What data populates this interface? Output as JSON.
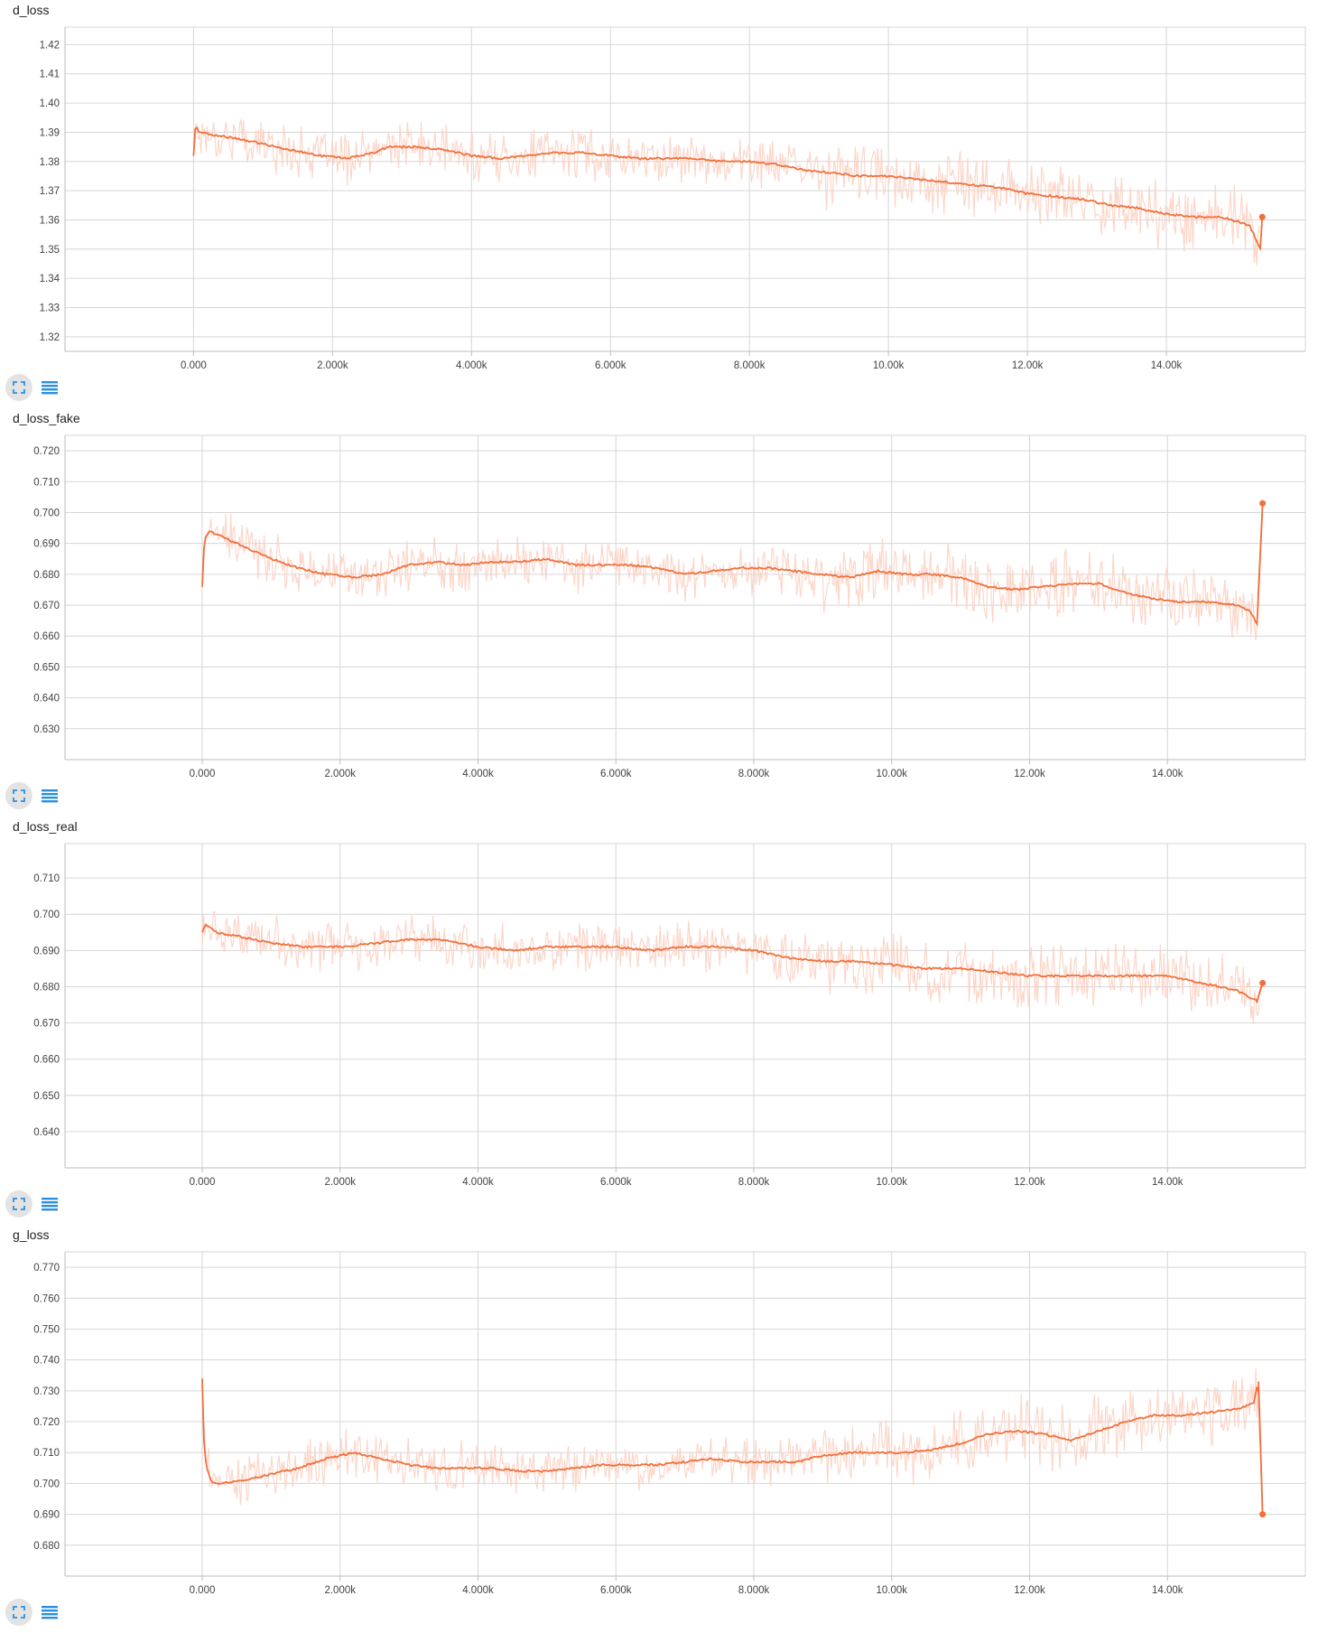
{
  "colors": {
    "smoothed": "#f26f3b",
    "raw": "#fcd2c3",
    "grid": "#d6d6d6",
    "axis": "#bdbdbd",
    "tool_icon": "#2b8fe0"
  },
  "toolbar": {
    "expand_icon": "fullscreen-icon",
    "data_icon": "list-icon"
  },
  "chart_data": [
    {
      "type": "line",
      "title": "d_loss",
      "x_ticks": [
        "0.000",
        "2.000k",
        "4.000k",
        "6.000k",
        "8.000k",
        "10.00k",
        "12.00k",
        "14.00k"
      ],
      "x_tick_values": [
        0,
        2000,
        4000,
        6000,
        8000,
        10000,
        12000,
        14000
      ],
      "y_ticks": [
        "1.32",
        "1.33",
        "1.34",
        "1.35",
        "1.36",
        "1.37",
        "1.38",
        "1.39",
        "1.40",
        "1.41",
        "1.42"
      ],
      "y_tick_values": [
        1.32,
        1.33,
        1.34,
        1.35,
        1.36,
        1.37,
        1.38,
        1.39,
        1.4,
        1.41,
        1.42
      ],
      "xlim": [
        -1850,
        16000
      ],
      "ylim": [
        1.315,
        1.426
      ],
      "grid": true,
      "series": [
        {
          "x": [
            0,
            30,
            80,
            300,
            600,
            1000,
            1400,
            1800,
            2200,
            2600,
            2800,
            3200,
            3600,
            4000,
            4400,
            4800,
            5200,
            5600,
            6000,
            6400,
            6800,
            7200,
            7600,
            8000,
            8400,
            8800,
            9200,
            9600,
            10000,
            10400,
            10800,
            11200,
            11600,
            12000,
            12400,
            12800,
            13200,
            13600,
            14000,
            14400,
            14800,
            15200,
            15350,
            15380
          ],
          "y": [
            1.382,
            1.393,
            1.39,
            1.389,
            1.388,
            1.386,
            1.384,
            1.382,
            1.381,
            1.383,
            1.385,
            1.385,
            1.384,
            1.382,
            1.381,
            1.382,
            1.383,
            1.383,
            1.382,
            1.381,
            1.381,
            1.381,
            1.38,
            1.38,
            1.379,
            1.377,
            1.376,
            1.375,
            1.375,
            1.374,
            1.373,
            1.372,
            1.371,
            1.369,
            1.368,
            1.367,
            1.365,
            1.364,
            1.362,
            1.361,
            1.361,
            1.358,
            1.35,
            1.361
          ]
        }
      ],
      "last_point": {
        "x": 15380,
        "y": 1.361
      }
    },
    {
      "type": "line",
      "title": "d_loss_fake",
      "x_ticks": [
        "0.000",
        "2.000k",
        "4.000k",
        "6.000k",
        "8.000k",
        "10.00k",
        "12.00k",
        "14.00k"
      ],
      "x_tick_values": [
        0,
        2000,
        4000,
        6000,
        8000,
        10000,
        12000,
        14000
      ],
      "y_ticks": [
        "0.630",
        "0.640",
        "0.650",
        "0.660",
        "0.670",
        "0.680",
        "0.690",
        "0.700",
        "0.710",
        "0.720"
      ],
      "y_tick_values": [
        0.63,
        0.64,
        0.65,
        0.66,
        0.67,
        0.68,
        0.69,
        0.7,
        0.71,
        0.72
      ],
      "xlim": [
        -1990,
        16000
      ],
      "ylim": [
        0.62,
        0.725
      ],
      "grid": true,
      "series": [
        {
          "x": [
            0,
            30,
            100,
            300,
            600,
            1000,
            1400,
            1800,
            2200,
            2600,
            3000,
            3400,
            3800,
            4200,
            4600,
            5000,
            5400,
            5800,
            6200,
            6600,
            7000,
            7400,
            7800,
            8200,
            8600,
            9000,
            9400,
            9800,
            10200,
            10600,
            11000,
            11400,
            11800,
            12200,
            12600,
            13000,
            13400,
            13800,
            14200,
            14600,
            15000,
            15200,
            15300,
            15380
          ],
          "y": [
            0.676,
            0.691,
            0.694,
            0.692,
            0.689,
            0.685,
            0.682,
            0.68,
            0.679,
            0.68,
            0.683,
            0.684,
            0.683,
            0.684,
            0.684,
            0.685,
            0.683,
            0.683,
            0.683,
            0.682,
            0.68,
            0.681,
            0.682,
            0.682,
            0.681,
            0.68,
            0.679,
            0.681,
            0.68,
            0.68,
            0.679,
            0.676,
            0.675,
            0.676,
            0.677,
            0.677,
            0.674,
            0.672,
            0.671,
            0.671,
            0.67,
            0.668,
            0.664,
            0.703
          ]
        }
      ],
      "last_point": {
        "x": 15380,
        "y": 0.703
      }
    },
    {
      "type": "line",
      "title": "d_loss_real",
      "x_ticks": [
        "0.000",
        "2.000k",
        "4.000k",
        "6.000k",
        "8.000k",
        "10.00k",
        "12.00k",
        "14.00k"
      ],
      "x_tick_values": [
        0,
        2000,
        4000,
        6000,
        8000,
        10000,
        12000,
        14000
      ],
      "y_ticks": [
        "0.640",
        "0.650",
        "0.660",
        "0.670",
        "0.680",
        "0.690",
        "0.700",
        "0.710"
      ],
      "y_tick_values": [
        0.64,
        0.65,
        0.66,
        0.67,
        0.68,
        0.69,
        0.7,
        0.71
      ],
      "xlim": [
        -1990,
        16000
      ],
      "ylim": [
        0.63,
        0.7195
      ],
      "grid": true,
      "series": [
        {
          "x": [
            0,
            50,
            200,
            500,
            1000,
            1500,
            2000,
            2500,
            3000,
            3500,
            4000,
            4500,
            5000,
            5500,
            6000,
            6500,
            7000,
            7500,
            8000,
            8500,
            9000,
            9500,
            10000,
            10500,
            11000,
            11500,
            12000,
            12500,
            13000,
            13500,
            14000,
            14500,
            15000,
            15300,
            15380
          ],
          "y": [
            0.695,
            0.697,
            0.695,
            0.694,
            0.692,
            0.691,
            0.691,
            0.692,
            0.693,
            0.693,
            0.691,
            0.69,
            0.691,
            0.691,
            0.691,
            0.69,
            0.691,
            0.691,
            0.69,
            0.688,
            0.687,
            0.687,
            0.686,
            0.685,
            0.685,
            0.684,
            0.683,
            0.683,
            0.683,
            0.683,
            0.683,
            0.681,
            0.679,
            0.676,
            0.681
          ]
        }
      ],
      "last_point": {
        "x": 15380,
        "y": 0.681
      }
    },
    {
      "type": "line",
      "title": "g_loss",
      "x_ticks": [
        "0.000",
        "2.000k",
        "4.000k",
        "6.000k",
        "8.000k",
        "10.00k",
        "12.00k",
        "14.00k"
      ],
      "x_tick_values": [
        0,
        2000,
        4000,
        6000,
        8000,
        10000,
        12000,
        14000
      ],
      "y_ticks": [
        "0.680",
        "0.690",
        "0.700",
        "0.710",
        "0.720",
        "0.730",
        "0.740",
        "0.750",
        "0.760",
        "0.770"
      ],
      "y_tick_values": [
        0.68,
        0.69,
        0.7,
        0.71,
        0.72,
        0.73,
        0.74,
        0.75,
        0.76,
        0.77
      ],
      "xlim": [
        -1990,
        16000
      ],
      "ylim": [
        0.67,
        0.775
      ],
      "grid": true,
      "series": [
        {
          "x": [
            0,
            20,
            60,
            150,
            300,
            600,
            1000,
            1400,
            1800,
            2200,
            2600,
            3000,
            3400,
            3800,
            4200,
            4600,
            5000,
            5400,
            5800,
            6200,
            6600,
            7000,
            7400,
            7800,
            8200,
            8600,
            9000,
            9400,
            9800,
            10200,
            10600,
            11000,
            11400,
            11800,
            12200,
            12600,
            13000,
            13400,
            13800,
            14200,
            14600,
            15000,
            15250,
            15320,
            15380
          ],
          "y": [
            0.734,
            0.715,
            0.705,
            0.7,
            0.7,
            0.701,
            0.703,
            0.705,
            0.708,
            0.71,
            0.708,
            0.706,
            0.705,
            0.705,
            0.705,
            0.704,
            0.704,
            0.705,
            0.706,
            0.706,
            0.706,
            0.707,
            0.708,
            0.707,
            0.707,
            0.707,
            0.709,
            0.71,
            0.71,
            0.71,
            0.711,
            0.713,
            0.716,
            0.717,
            0.716,
            0.714,
            0.717,
            0.72,
            0.722,
            0.722,
            0.723,
            0.724,
            0.726,
            0.733,
            0.69
          ]
        }
      ],
      "last_point": {
        "x": 15380,
        "y": 0.69
      }
    }
  ]
}
